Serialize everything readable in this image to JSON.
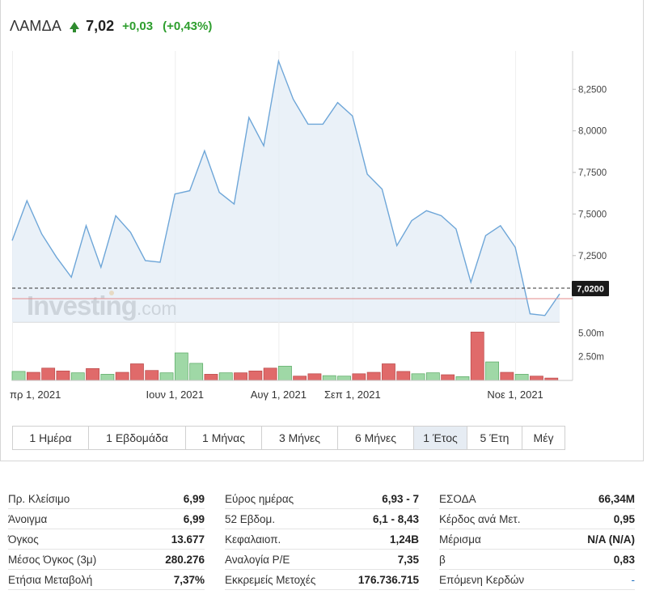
{
  "header": {
    "symbol": "ΛΑΜΔΑ",
    "price": "7,02",
    "change": "+0,03",
    "change_pct": "(+0,43%)",
    "direction_icon": "arrow-up-icon",
    "up_color": "#2e9e2e"
  },
  "watermark": {
    "brand": "Investing",
    "suffix": ".com"
  },
  "chart_data": [
    {
      "type": "area",
      "x_tick_labels": [
        "πρ 1, 2021",
        "Ιουν 1, 2021",
        "Αυγ 1, 2021",
        "Σεπ 1, 2021",
        "Νοε 1, 2021"
      ],
      "x_tick_index": [
        0,
        11,
        18,
        23,
        34
      ],
      "y_tick_labels": [
        "8,2500",
        "8,0000",
        "7,7500",
        "7,5000",
        "7,2500"
      ],
      "y_tick_values": [
        8.25,
        8.0,
        7.75,
        7.5,
        7.25
      ],
      "ylim": [
        6.85,
        8.48
      ],
      "values": [
        7.34,
        7.58,
        7.38,
        7.24,
        7.12,
        7.43,
        7.18,
        7.49,
        7.39,
        7.22,
        7.21,
        7.62,
        7.64,
        7.88,
        7.63,
        7.56,
        8.08,
        7.91,
        8.42,
        8.19,
        8.04,
        8.04,
        8.17,
        8.09,
        7.74,
        7.65,
        7.31,
        7.46,
        7.52,
        7.49,
        7.41,
        7.09,
        7.37,
        7.43,
        7.3,
        6.9,
        6.89,
        7.02
      ],
      "last_value": 7.02,
      "last_value_label": "7,0200",
      "line_color": "#6ea6d8",
      "fill_color": "#e3ecf5"
    },
    {
      "type": "bar",
      "y_tick_labels": [
        "5.00m",
        "2.50m"
      ],
      "y_tick_values": [
        5.0,
        2.5
      ],
      "ylim": [
        0,
        5.2
      ],
      "values": [
        0.95,
        0.85,
        1.3,
        1.0,
        0.8,
        1.25,
        0.65,
        0.85,
        1.75,
        1.05,
        0.8,
        2.9,
        1.8,
        0.65,
        0.8,
        0.8,
        1.0,
        1.3,
        1.5,
        0.45,
        0.7,
        0.5,
        0.45,
        0.7,
        0.85,
        1.75,
        0.95,
        0.7,
        0.8,
        0.6,
        0.4,
        5.1,
        1.95,
        0.85,
        0.65,
        0.45,
        0.25
      ],
      "up": [
        true,
        false,
        false,
        false,
        true,
        false,
        true,
        false,
        false,
        false,
        true,
        true,
        true,
        false,
        true,
        false,
        false,
        false,
        true,
        false,
        false,
        true,
        true,
        false,
        false,
        false,
        false,
        true,
        true,
        false,
        true,
        false,
        true,
        false,
        true,
        false,
        false
      ],
      "up_color": "#9fd8a6",
      "down_color": "#e06a6a"
    }
  ],
  "range_buttons": [
    {
      "label": "1 Ημέρα",
      "active": false
    },
    {
      "label": "1 Εβδομάδα",
      "active": false
    },
    {
      "label": "1 Μήνας",
      "active": false
    },
    {
      "label": "3 Μήνες",
      "active": false
    },
    {
      "label": "6 Μήνες",
      "active": false
    },
    {
      "label": "1 Έτος",
      "active": true
    },
    {
      "label": "5 Έτη",
      "active": false
    },
    {
      "label": "Μέγ",
      "active": false
    }
  ],
  "stats": [
    [
      {
        "label": "Πρ. Κλείσιμο",
        "value": "6,99"
      },
      {
        "label": "Άνοιγμα",
        "value": "6,99"
      },
      {
        "label": "Όγκος",
        "value": "13.677"
      },
      {
        "label": "Μέσος Όγκος (3μ)",
        "value": "280.276"
      },
      {
        "label": "Ετήσια Μεταβολή",
        "value": "7,37%"
      }
    ],
    [
      {
        "label": "Εύρος ημέρας",
        "value": "6,93 - 7"
      },
      {
        "label": "52 Εβδομ.",
        "value": "6,1 - 8,43"
      },
      {
        "label": "Κεφαλαιοπ.",
        "value": "1,24B"
      },
      {
        "label": "Αναλογία P/E",
        "value": "7,35"
      },
      {
        "label": "Εκκρεμείς Μετοχές",
        "value": "176.736.715"
      }
    ],
    [
      {
        "label": "ΕΣΟΔΑ",
        "value": "66,34M"
      },
      {
        "label": "Κέρδος ανά Μετ.",
        "value": "0,95"
      },
      {
        "label": "Μέρισμα",
        "value": "N/A (N/A)"
      },
      {
        "label": "β",
        "value": "0,83"
      },
      {
        "label": "Επόμενη Κερδών",
        "value": "-"
      }
    ]
  ]
}
